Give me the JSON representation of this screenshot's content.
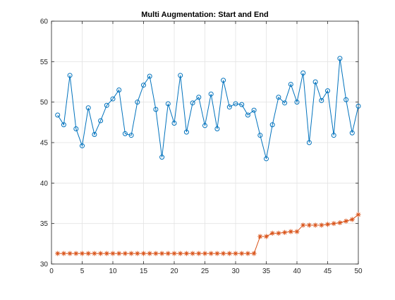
{
  "chart_data": {
    "type": "line",
    "title": "Multi Augmentation: Start and End",
    "xlabel": "",
    "ylabel": "",
    "xlim": [
      0,
      50
    ],
    "ylim": [
      30,
      60
    ],
    "xticks": [
      0,
      5,
      10,
      15,
      20,
      25,
      30,
      35,
      40,
      45,
      50
    ],
    "yticks": [
      30,
      35,
      40,
      45,
      50,
      55,
      60
    ],
    "grid": true,
    "legend": "none",
    "x": [
      1,
      2,
      3,
      4,
      5,
      6,
      7,
      8,
      9,
      10,
      11,
      12,
      13,
      14,
      15,
      16,
      17,
      18,
      19,
      20,
      21,
      22,
      23,
      24,
      25,
      26,
      27,
      28,
      29,
      30,
      31,
      32,
      33,
      34,
      35,
      36,
      37,
      38,
      39,
      40,
      41,
      42,
      43,
      44,
      45,
      46,
      47,
      48,
      49,
      50
    ],
    "series": [
      {
        "color": "#0072BD",
        "marker": "circle",
        "values": [
          48.4,
          47.2,
          53.3,
          46.7,
          44.6,
          49.3,
          46.0,
          47.7,
          49.6,
          50.4,
          51.5,
          46.1,
          45.9,
          50.0,
          52.1,
          53.2,
          49.1,
          43.2,
          49.8,
          47.4,
          53.3,
          46.3,
          49.9,
          50.6,
          47.1,
          51.0,
          46.7,
          52.7,
          49.4,
          49.8,
          49.7,
          48.4,
          49.0,
          45.9,
          43.0,
          47.2,
          50.6,
          49.9,
          52.2,
          50.0,
          53.6,
          45.0,
          52.5,
          50.2,
          51.4,
          45.9,
          55.4,
          50.3,
          46.2,
          49.5
        ]
      },
      {
        "color": "#D95319",
        "marker": "asterisk",
        "values": [
          31.3,
          31.3,
          31.3,
          31.3,
          31.3,
          31.3,
          31.3,
          31.3,
          31.3,
          31.3,
          31.3,
          31.3,
          31.3,
          31.3,
          31.3,
          31.3,
          31.3,
          31.3,
          31.3,
          31.3,
          31.3,
          31.3,
          31.3,
          31.3,
          31.3,
          31.3,
          31.3,
          31.3,
          31.3,
          31.3,
          31.3,
          31.3,
          31.3,
          33.4,
          33.4,
          33.8,
          33.8,
          33.9,
          34.0,
          34.0,
          34.8,
          34.8,
          34.8,
          34.8,
          34.9,
          35.0,
          35.1,
          35.3,
          35.5,
          36.1
        ]
      }
    ]
  }
}
